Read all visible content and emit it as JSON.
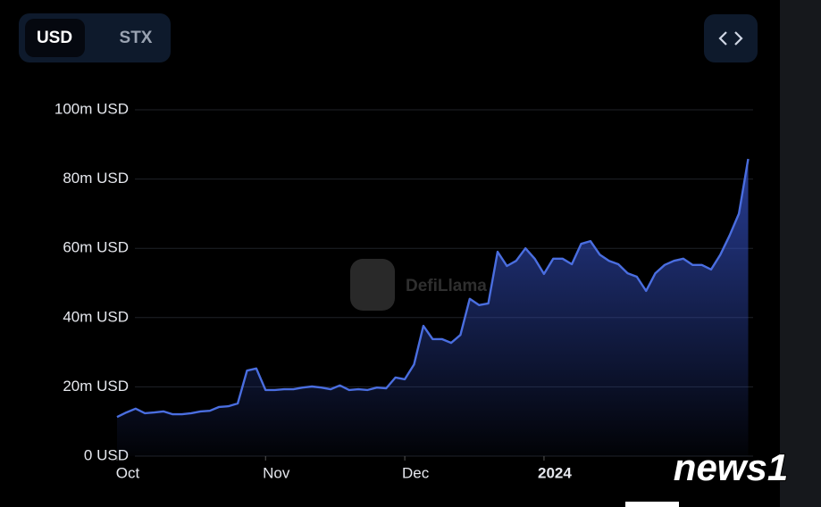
{
  "toggle": [
    "USD",
    "STX"
  ],
  "watermark": "DefiLlama",
  "source_logo": "news1",
  "chart_data": {
    "type": "area",
    "categories": [
      "Oct",
      null,
      null,
      null,
      null,
      null,
      null,
      null,
      null,
      null,
      null,
      null,
      null,
      null,
      null,
      null,
      "Nov",
      null,
      null,
      null,
      null,
      null,
      null,
      null,
      null,
      null,
      null,
      null,
      null,
      null,
      null,
      "Dec",
      null,
      null,
      null,
      null,
      null,
      null,
      null,
      null,
      null,
      null,
      null,
      null,
      null,
      null,
      "2024",
      null,
      null,
      null,
      null,
      null,
      null,
      null,
      null,
      null,
      null,
      null,
      null,
      null,
      null,
      null,
      null,
      null,
      null,
      null,
      null,
      null,
      null
    ],
    "series": [
      {
        "color": "#4a6ee0",
        "values": [
          11.3,
          12.6,
          13.7,
          12.4,
          12.6,
          12.9,
          12.1,
          12.1,
          12.4,
          12.9,
          13.1,
          14.2,
          14.4,
          15.2,
          24.7,
          25.3,
          19.1,
          19.1,
          19.3,
          19.3,
          19.8,
          20.1,
          19.8,
          19.3,
          20.4,
          19.1,
          19.3,
          19.1,
          19.8,
          19.6,
          22.7,
          22.2,
          26.5,
          37.6,
          33.8,
          33.8,
          32.7,
          35,
          45.4,
          43.6,
          44.1,
          59,
          54.9,
          56.4,
          60,
          57,
          52.6,
          57,
          57,
          55.4,
          61.3,
          62.1,
          58.2,
          56.4,
          55.4,
          52.8,
          51.8,
          47.7,
          52.8,
          55.2,
          56.4,
          57,
          55.2,
          55.2,
          53.9,
          58.2,
          63.7,
          70,
          85.8
        ]
      }
    ],
    "ylim": [
      0,
      100
    ],
    "yticks": [
      {
        "value": 0,
        "label": "0 USD"
      },
      {
        "value": 20,
        "label": "20m USD"
      },
      {
        "value": 40,
        "label": "40m USD"
      },
      {
        "value": 60,
        "label": "60m USD"
      },
      {
        "value": 80,
        "label": "80m USD"
      },
      {
        "value": 100,
        "label": "100m USD"
      }
    ],
    "grid": true
  }
}
